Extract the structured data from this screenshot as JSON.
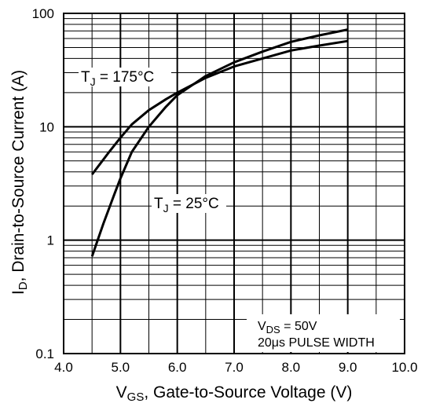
{
  "chart_data": {
    "type": "line",
    "xlabel": "V_GS, Gate-to-Source Voltage (V)",
    "ylabel": "I_D, Drain-to-Source Current (A)",
    "xlabel_parts": {
      "sym": "V",
      "sub": "GS",
      "rest": ", Gate-to-Source Voltage (V)"
    },
    "ylabel_parts": {
      "sym": "I",
      "sub": "D",
      "rest": ", Drain-to-Source Current (A)"
    },
    "xlim": [
      4.0,
      10.0
    ],
    "ylim": [
      0.1,
      100
    ],
    "yscale": "log",
    "grid": true,
    "x_ticks": [
      "4.0",
      "5.0",
      "6.0",
      "7.0",
      "8.0",
      "9.0",
      "10.0"
    ],
    "y_ticks": [
      "0.1",
      "1",
      "10",
      "100"
    ],
    "series": [
      {
        "name": "T_J = 175°C",
        "x": [
          4.5,
          4.8,
          5.0,
          5.2,
          5.5,
          5.8,
          6.0,
          6.5,
          7.0,
          7.5,
          8.0,
          8.5,
          9.0
        ],
        "y": [
          3.8,
          6.0,
          8.0,
          10.5,
          14.0,
          17.5,
          20.0,
          27.0,
          34.0,
          40.0,
          47.0,
          52.0,
          57.0
        ]
      },
      {
        "name": "T_J = 25°C",
        "x": [
          4.5,
          4.7,
          4.9,
          5.0,
          5.2,
          5.5,
          5.8,
          6.0,
          6.5,
          7.0,
          7.5,
          8.0,
          8.5,
          9.0
        ],
        "y": [
          0.72,
          1.4,
          2.6,
          3.5,
          6.0,
          10.0,
          15.0,
          19.0,
          28.0,
          37.0,
          46.0,
          56.0,
          64.0,
          72.0
        ]
      }
    ],
    "annotations": [
      {
        "sym": "T",
        "sub": "J",
        "rest": " = 175°C"
      },
      {
        "sym": "T",
        "sub": "J",
        "rest": " = 25°C"
      }
    ],
    "note": {
      "line1_sym": "V",
      "line1_sub": "DS",
      "line1_rest": " = 50V",
      "line2": "20μs PULSE WIDTH"
    }
  }
}
